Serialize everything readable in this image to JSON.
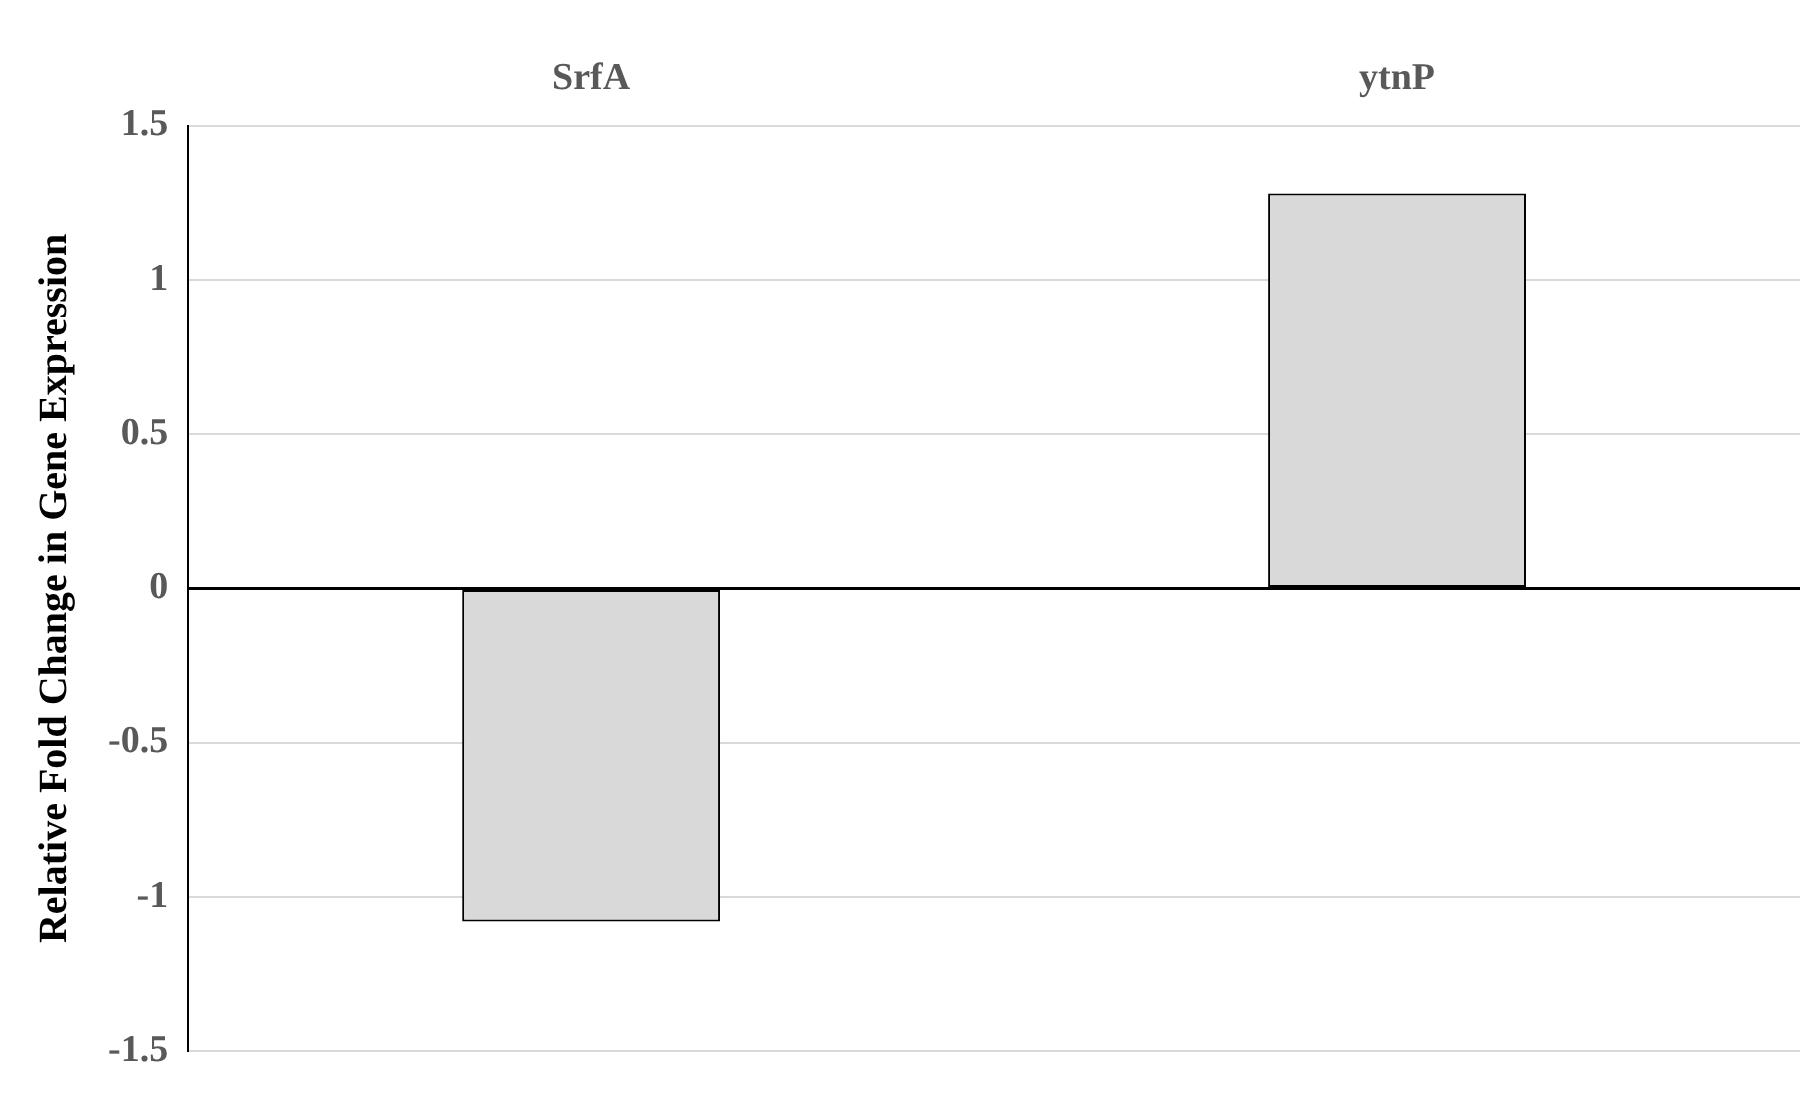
{
  "chart_data": {
    "type": "bar",
    "ylabel": "Relative Fold Change in Gene Expression",
    "categories": [
      "SrfA",
      "ytnP"
    ],
    "values": [
      -1.08,
      1.28
    ],
    "color": "#d9d9d9",
    "ylim": [
      -1.5,
      1.5
    ],
    "yticks": [
      -1.5,
      -1,
      -0.5,
      0,
      0.5,
      1,
      1.5
    ],
    "grid": "y",
    "legend": false
  }
}
